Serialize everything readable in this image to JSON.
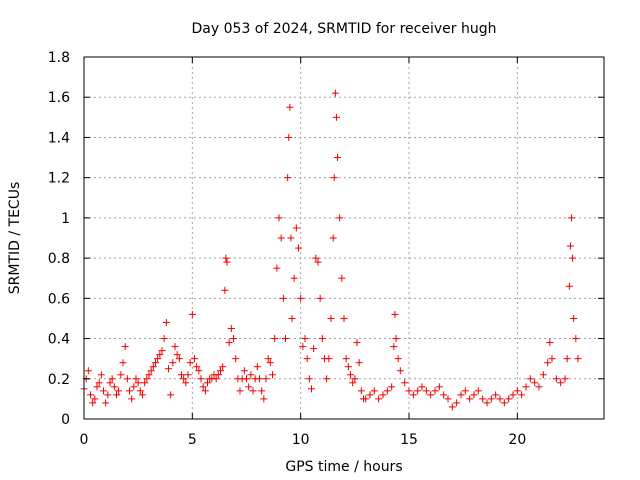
{
  "chart_data": {
    "type": "scatter",
    "title": "Day 053 of 2024, SRMTID for receiver hugh",
    "xlabel": "GPS time / hours",
    "ylabel": "SRMTID / TECUs",
    "xlim": [
      0,
      24
    ],
    "ylim": [
      0,
      1.8
    ],
    "xticks": [
      0,
      5,
      10,
      15,
      20
    ],
    "xtick_labels": [
      "0",
      "5",
      "10",
      "15",
      "20"
    ],
    "yticks": [
      0,
      0.2,
      0.4,
      0.6,
      0.8,
      1.0,
      1.2,
      1.4,
      1.6,
      1.8
    ],
    "ytick_labels": [
      "0",
      "0.2",
      "0.4",
      "0.6",
      "0.8",
      "1",
      "1.2",
      "1.4",
      "1.6",
      "1.8"
    ],
    "grid": true,
    "marker": "+",
    "color": "#ee0000",
    "series": [
      {
        "name": "SRMTID",
        "points": [
          [
            0.0,
            0.15
          ],
          [
            0.1,
            0.2
          ],
          [
            0.2,
            0.24
          ],
          [
            0.3,
            0.12
          ],
          [
            0.4,
            0.08
          ],
          [
            0.5,
            0.1
          ],
          [
            0.6,
            0.16
          ],
          [
            0.7,
            0.18
          ],
          [
            0.8,
            0.22
          ],
          [
            0.9,
            0.14
          ],
          [
            1.0,
            0.08
          ],
          [
            1.1,
            0.12
          ],
          [
            1.2,
            0.18
          ],
          [
            1.3,
            0.2
          ],
          [
            1.4,
            0.16
          ],
          [
            1.5,
            0.12
          ],
          [
            1.6,
            0.14
          ],
          [
            1.7,
            0.22
          ],
          [
            1.8,
            0.28
          ],
          [
            1.9,
            0.36
          ],
          [
            2.0,
            0.2
          ],
          [
            2.1,
            0.14
          ],
          [
            2.2,
            0.1
          ],
          [
            2.3,
            0.16
          ],
          [
            2.4,
            0.2
          ],
          [
            2.5,
            0.18
          ],
          [
            2.6,
            0.14
          ],
          [
            2.7,
            0.12
          ],
          [
            2.8,
            0.18
          ],
          [
            2.9,
            0.2
          ],
          [
            3.0,
            0.22
          ],
          [
            3.1,
            0.24
          ],
          [
            3.2,
            0.26
          ],
          [
            3.3,
            0.28
          ],
          [
            3.4,
            0.3
          ],
          [
            3.5,
            0.32
          ],
          [
            3.6,
            0.34
          ],
          [
            3.7,
            0.4
          ],
          [
            3.8,
            0.48
          ],
          [
            3.9,
            0.25
          ],
          [
            4.0,
            0.12
          ],
          [
            4.1,
            0.28
          ],
          [
            4.2,
            0.36
          ],
          [
            4.3,
            0.32
          ],
          [
            4.4,
            0.3
          ],
          [
            4.5,
            0.22
          ],
          [
            4.6,
            0.2
          ],
          [
            4.7,
            0.18
          ],
          [
            4.8,
            0.22
          ],
          [
            4.9,
            0.28
          ],
          [
            5.0,
            0.52
          ],
          [
            5.1,
            0.3
          ],
          [
            5.2,
            0.26
          ],
          [
            5.3,
            0.24
          ],
          [
            5.4,
            0.2
          ],
          [
            5.5,
            0.16
          ],
          [
            5.6,
            0.14
          ],
          [
            5.7,
            0.18
          ],
          [
            5.8,
            0.2
          ],
          [
            5.9,
            0.2
          ],
          [
            6.0,
            0.22
          ],
          [
            6.1,
            0.2
          ],
          [
            6.2,
            0.22
          ],
          [
            6.3,
            0.24
          ],
          [
            6.4,
            0.26
          ],
          [
            6.5,
            0.64
          ],
          [
            6.55,
            0.8
          ],
          [
            6.6,
            0.78
          ],
          [
            6.7,
            0.38
          ],
          [
            6.8,
            0.45
          ],
          [
            6.9,
            0.4
          ],
          [
            7.0,
            0.3
          ],
          [
            7.1,
            0.2
          ],
          [
            7.2,
            0.14
          ],
          [
            7.3,
            0.2
          ],
          [
            7.4,
            0.24
          ],
          [
            7.5,
            0.2
          ],
          [
            7.6,
            0.16
          ],
          [
            7.7,
            0.22
          ],
          [
            7.8,
            0.14
          ],
          [
            7.9,
            0.2
          ],
          [
            8.0,
            0.26
          ],
          [
            8.1,
            0.2
          ],
          [
            8.2,
            0.14
          ],
          [
            8.3,
            0.1
          ],
          [
            8.4,
            0.2
          ],
          [
            8.5,
            0.3
          ],
          [
            8.6,
            0.28
          ],
          [
            8.7,
            0.22
          ],
          [
            8.8,
            0.4
          ],
          [
            8.9,
            0.75
          ],
          [
            9.0,
            1.0
          ],
          [
            9.1,
            0.9
          ],
          [
            9.2,
            0.6
          ],
          [
            9.3,
            0.4
          ],
          [
            9.4,
            1.2
          ],
          [
            9.45,
            1.4
          ],
          [
            9.5,
            1.55
          ],
          [
            9.55,
            0.9
          ],
          [
            9.6,
            0.5
          ],
          [
            9.7,
            0.7
          ],
          [
            9.8,
            0.95
          ],
          [
            9.9,
            0.85
          ],
          [
            10.0,
            0.6
          ],
          [
            10.1,
            0.36
          ],
          [
            10.2,
            0.4
          ],
          [
            10.3,
            0.3
          ],
          [
            10.4,
            0.2
          ],
          [
            10.5,
            0.15
          ],
          [
            10.6,
            0.35
          ],
          [
            10.7,
            0.8
          ],
          [
            10.8,
            0.78
          ],
          [
            10.9,
            0.6
          ],
          [
            11.0,
            0.4
          ],
          [
            11.1,
            0.3
          ],
          [
            11.2,
            0.2
          ],
          [
            11.3,
            0.3
          ],
          [
            11.4,
            0.5
          ],
          [
            11.5,
            0.9
          ],
          [
            11.55,
            1.2
          ],
          [
            11.6,
            1.62
          ],
          [
            11.65,
            1.5
          ],
          [
            11.7,
            1.3
          ],
          [
            11.8,
            1.0
          ],
          [
            11.9,
            0.7
          ],
          [
            12.0,
            0.5
          ],
          [
            12.1,
            0.3
          ],
          [
            12.2,
            0.26
          ],
          [
            12.3,
            0.22
          ],
          [
            12.4,
            0.18
          ],
          [
            12.5,
            0.2
          ],
          [
            12.6,
            0.38
          ],
          [
            12.7,
            0.28
          ],
          [
            12.8,
            0.14
          ],
          [
            12.9,
            0.1
          ],
          [
            13.0,
            0.1
          ],
          [
            13.2,
            0.12
          ],
          [
            13.4,
            0.14
          ],
          [
            13.6,
            0.1
          ],
          [
            13.8,
            0.12
          ],
          [
            14.0,
            0.14
          ],
          [
            14.2,
            0.16
          ],
          [
            14.3,
            0.36
          ],
          [
            14.35,
            0.52
          ],
          [
            14.4,
            0.4
          ],
          [
            14.5,
            0.3
          ],
          [
            14.6,
            0.24
          ],
          [
            14.8,
            0.18
          ],
          [
            15.0,
            0.14
          ],
          [
            15.2,
            0.12
          ],
          [
            15.4,
            0.14
          ],
          [
            15.6,
            0.16
          ],
          [
            15.8,
            0.14
          ],
          [
            16.0,
            0.12
          ],
          [
            16.2,
            0.14
          ],
          [
            16.4,
            0.16
          ],
          [
            16.6,
            0.12
          ],
          [
            16.8,
            0.1
          ],
          [
            17.0,
            0.06
          ],
          [
            17.2,
            0.08
          ],
          [
            17.4,
            0.12
          ],
          [
            17.6,
            0.14
          ],
          [
            17.8,
            0.1
          ],
          [
            18.0,
            0.12
          ],
          [
            18.2,
            0.14
          ],
          [
            18.4,
            0.1
          ],
          [
            18.6,
            0.08
          ],
          [
            18.8,
            0.1
          ],
          [
            19.0,
            0.12
          ],
          [
            19.2,
            0.1
          ],
          [
            19.4,
            0.08
          ],
          [
            19.6,
            0.1
          ],
          [
            19.8,
            0.12
          ],
          [
            20.0,
            0.14
          ],
          [
            20.2,
            0.12
          ],
          [
            20.4,
            0.16
          ],
          [
            20.6,
            0.2
          ],
          [
            20.8,
            0.18
          ],
          [
            21.0,
            0.16
          ],
          [
            21.2,
            0.22
          ],
          [
            21.4,
            0.28
          ],
          [
            21.5,
            0.38
          ],
          [
            21.6,
            0.3
          ],
          [
            21.8,
            0.2
          ],
          [
            22.0,
            0.18
          ],
          [
            22.2,
            0.2
          ],
          [
            22.3,
            0.3
          ],
          [
            22.4,
            0.66
          ],
          [
            22.45,
            0.86
          ],
          [
            22.5,
            1.0
          ],
          [
            22.55,
            0.8
          ],
          [
            22.6,
            0.5
          ],
          [
            22.7,
            0.4
          ],
          [
            22.8,
            0.3
          ]
        ]
      }
    ]
  }
}
